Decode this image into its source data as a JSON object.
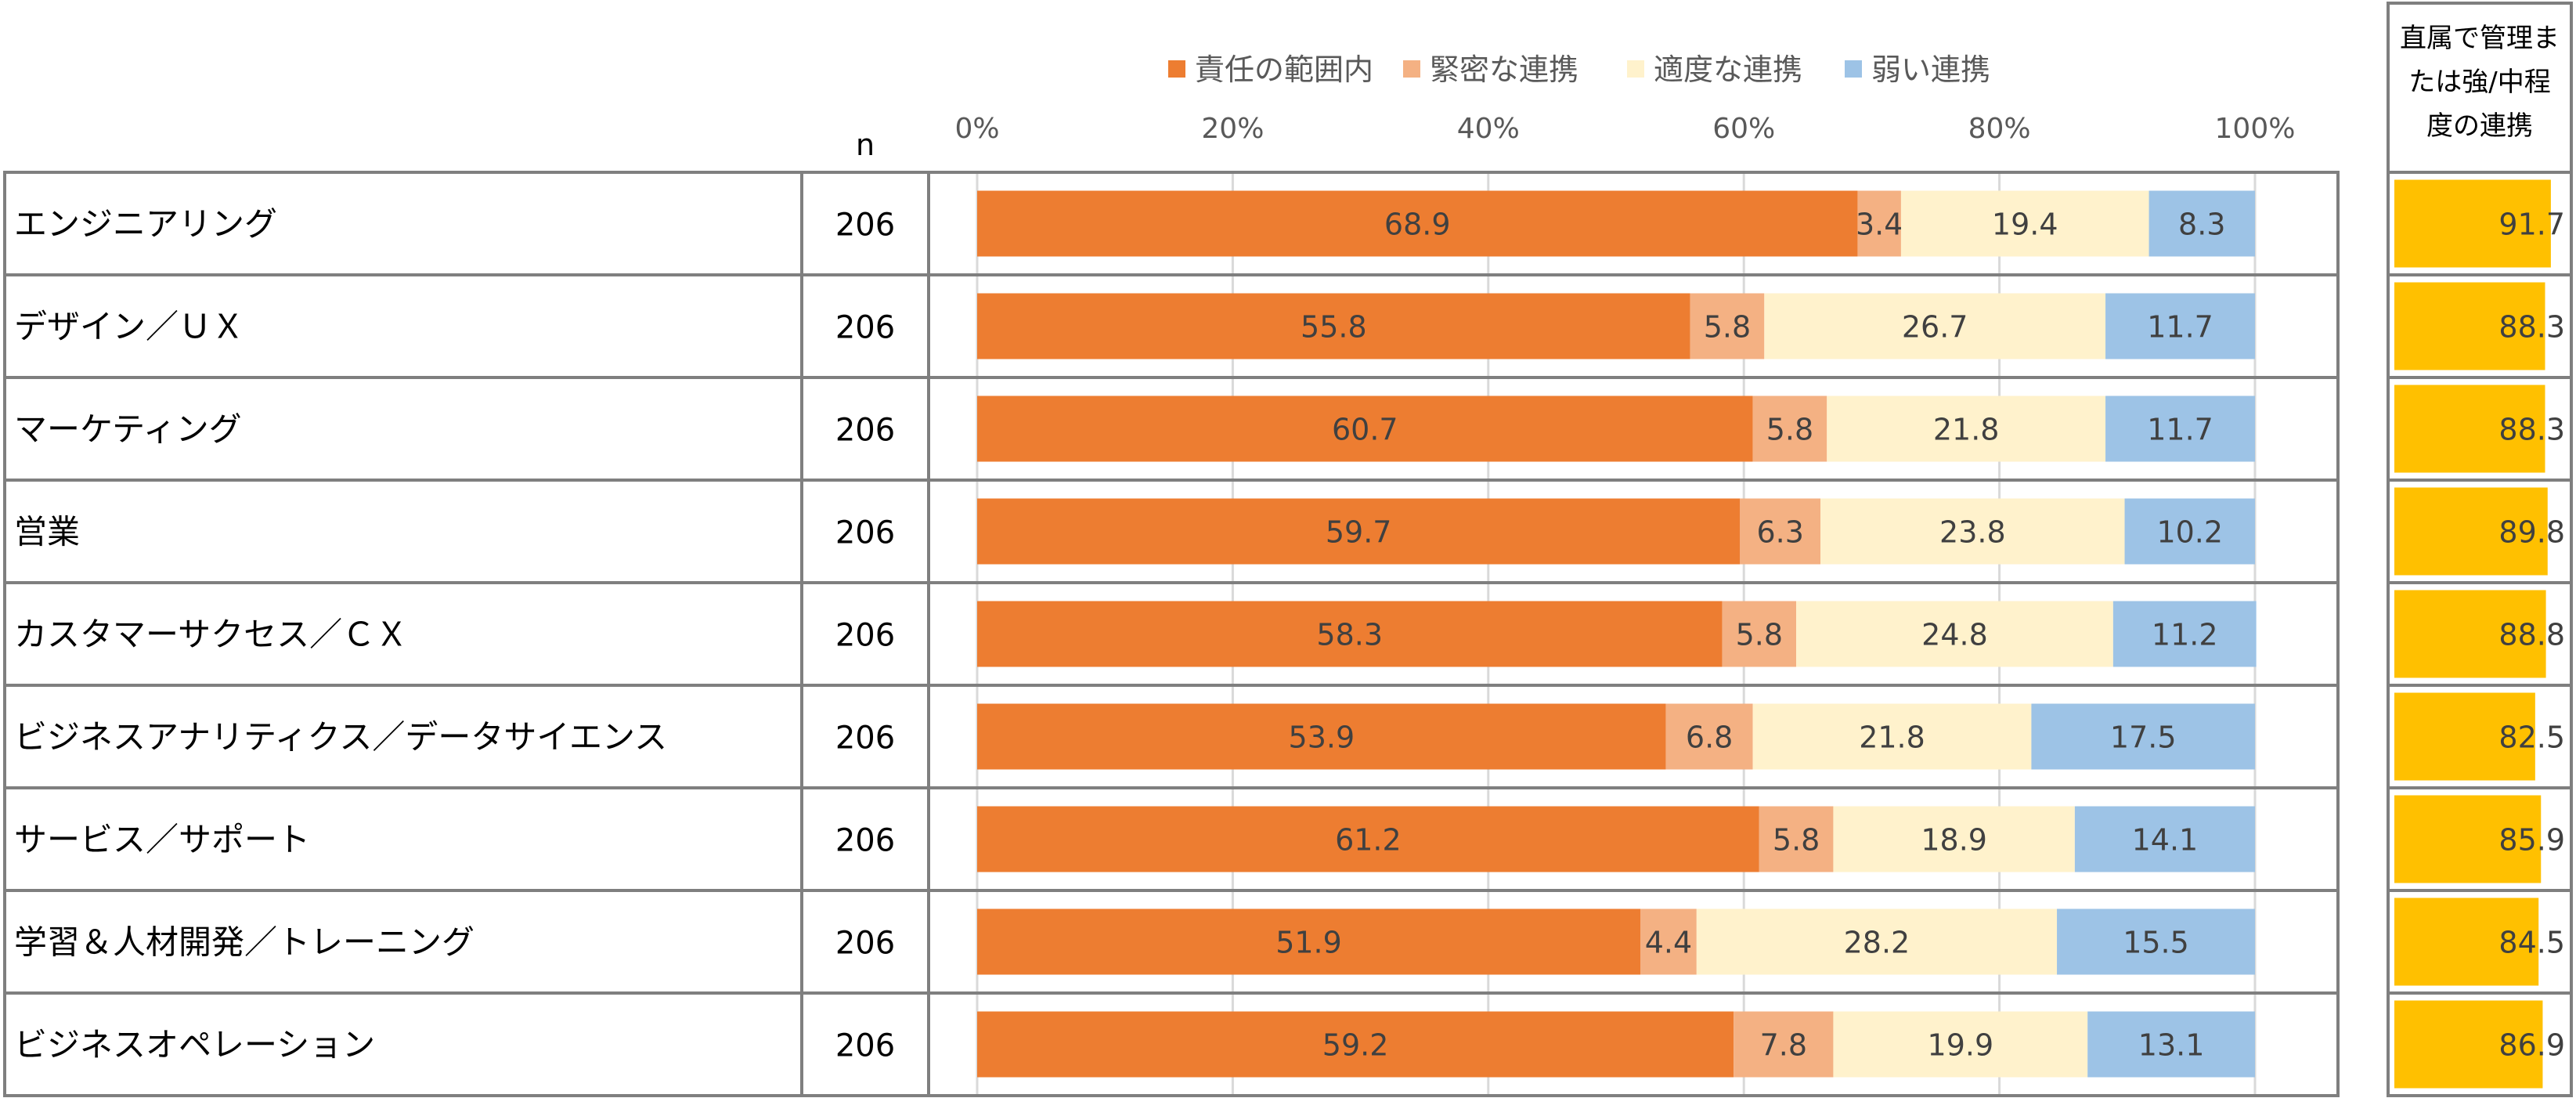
{
  "chart_data": {
    "type": "bar",
    "orientation": "horizontal",
    "stacked": true,
    "n_header": "n",
    "categories": [
      "エンジニアリング",
      "デザイン／ＵＸ",
      "マーケティング",
      "営業",
      "カスタマーサクセス／ＣＸ",
      "ビジネスアナリティクス／データサイエンス",
      "サービス／サポート",
      "学習＆人材開発／トレーニング",
      "ビジネスオペレーション"
    ],
    "n": [
      206,
      206,
      206,
      206,
      206,
      206,
      206,
      206,
      206
    ],
    "series": [
      {
        "name": "責任の範囲内",
        "color": "#ED7D31",
        "values": [
          68.9,
          55.8,
          60.7,
          59.7,
          58.3,
          53.9,
          61.2,
          51.9,
          59.2
        ]
      },
      {
        "name": "緊密な連携",
        "color": "#F4B183",
        "values": [
          3.4,
          5.8,
          5.8,
          6.3,
          5.8,
          6.8,
          5.8,
          4.4,
          7.8
        ]
      },
      {
        "name": "適度な連携",
        "color": "#FFF2CC",
        "values": [
          19.4,
          26.7,
          21.8,
          23.8,
          24.8,
          21.8,
          18.9,
          28.2,
          19.9
        ]
      },
      {
        "name": "弱い連携",
        "color": "#9DC3E6",
        "values": [
          8.3,
          11.7,
          11.7,
          10.2,
          11.2,
          17.5,
          14.1,
          15.5,
          13.1
        ]
      }
    ],
    "x_ticks": [
      "0%",
      "20%",
      "40%",
      "60%",
      "80%",
      "100%"
    ],
    "xlim": [
      0,
      100
    ],
    "grid": true,
    "legend": "top",
    "side_column": {
      "title": "直属で管理または強/中程度の連携",
      "title_lines": [
        "直属で管理ま",
        "たは強/中程",
        "度の連携"
      ],
      "color": "#FFC000",
      "values": [
        91.7,
        88.3,
        88.3,
        89.8,
        88.8,
        82.5,
        85.9,
        84.5,
        86.9
      ]
    }
  }
}
